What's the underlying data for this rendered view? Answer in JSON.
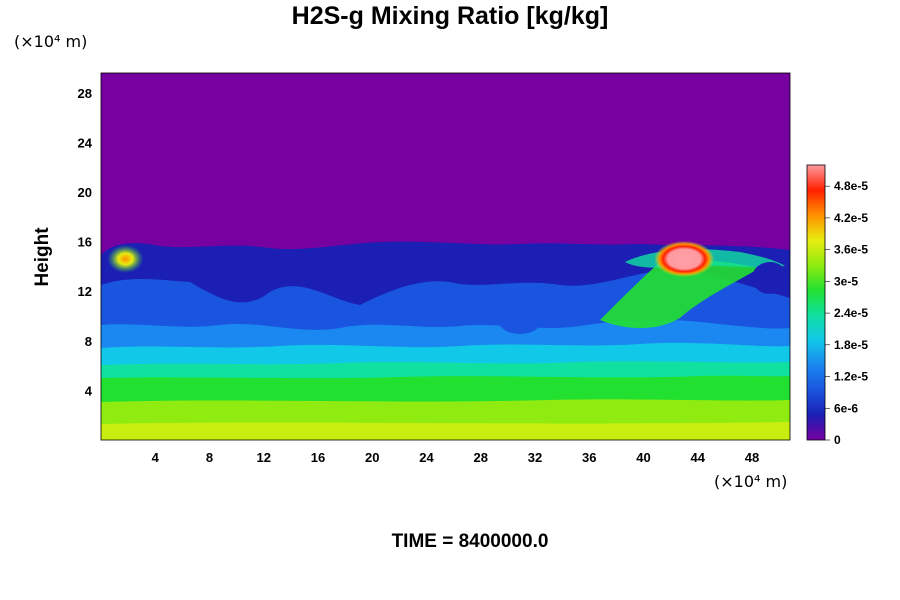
{
  "chart_data": {
    "type": "heatmap",
    "title": "H2S-g Mixing Ratio [kg/kg]",
    "ylabel": "Height",
    "x_unit": "(×10⁴ m)",
    "y_unit": "(×10⁴ m)",
    "x_ticks": [
      4,
      8,
      12,
      16,
      20,
      24,
      28,
      32,
      36,
      40,
      44,
      48
    ],
    "y_ticks": [
      4,
      8,
      12,
      16,
      20,
      24,
      28
    ],
    "xlim": [
      0,
      50.8
    ],
    "ylim": [
      0,
      29.6
    ],
    "colorbar": {
      "range": [
        0,
        5.2e-05
      ],
      "labels": [
        "0",
        "6e-6",
        "1.2e-5",
        "1.8e-5",
        "2.4e-5",
        "3e-5",
        "3.6e-5",
        "4.2e-5",
        "4.8e-5"
      ],
      "colors": [
        "#7700a0",
        "#1b1fb4",
        "#1a55e0",
        "#1a88f0",
        "#12c8e8",
        "#10e0a0",
        "#22e030",
        "#90ec10",
        "#e8ec10",
        "#ff9000",
        "#ff2000",
        "#ff9aa0"
      ]
    },
    "plume": {
      "top_height": 15.6,
      "hotspot": {
        "x": 43,
        "y": 14.6,
        "value": 5e-05
      },
      "left_bright_spot": {
        "x": 1.8,
        "y": 14.6,
        "value": 3.9e-05
      },
      "surface_value": 3.4e-05
    }
  },
  "time_label": "TIME = 8400000.0"
}
